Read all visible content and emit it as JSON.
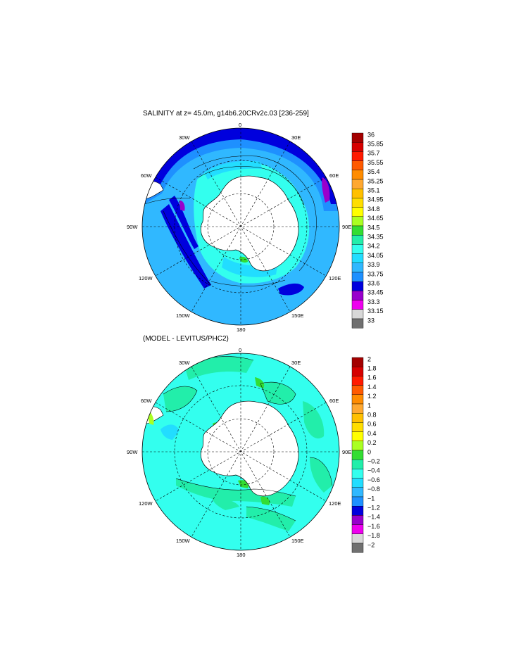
{
  "panel1": {
    "title": "SALINITY at z=  45.0m, g14b6.20CRv2c.03 [236-259]",
    "lon_labels": {
      "l0": "0",
      "l30w": "30W",
      "l30e": "30E",
      "l60w": "60W",
      "l60e": "60E",
      "l90w": "90W",
      "l90e": "90E",
      "l120w": "120W",
      "l120e": "120E",
      "l150w": "150W",
      "l150e": "150E",
      "l180": "180"
    },
    "colorbar": {
      "labels": [
        "36",
        "35.85",
        "35.7",
        "35.55",
        "35.4",
        "35.25",
        "35.1",
        "34.95",
        "34.8",
        "34.65",
        "34.5",
        "34.35",
        "34.2",
        "34.05",
        "33.9",
        "33.75",
        "33.6",
        "33.45",
        "33.3",
        "33.15",
        "33"
      ],
      "colors": [
        "#a30000",
        "#d60000",
        "#ff1a00",
        "#ff5a00",
        "#ff8c00",
        "#ffa830",
        "#ffc000",
        "#ffde00",
        "#ffff00",
        "#aaff22",
        "#33dd33",
        "#22eeaa",
        "#33ffee",
        "#22ddff",
        "#30b8ff",
        "#1e90ff",
        "#0000dd",
        "#9900cc",
        "#ee00ee",
        "#d8d8d8",
        "#707070"
      ]
    }
  },
  "panel2": {
    "title": "(MODEL - LEVITUS/PHC2)",
    "lon_labels": {
      "l0": "0",
      "l30w": "30W",
      "l30e": "30E",
      "l60w": "60W",
      "l60e": "60E",
      "l90w": "90W",
      "l90e": "90E",
      "l120w": "120W",
      "l120e": "120E",
      "l150w": "150W",
      "l150e": "150E",
      "l180": "180"
    },
    "colorbar": {
      "labels": [
        "2",
        "1.8",
        "1.6",
        "1.4",
        "1.2",
        "1",
        "0.8",
        "0.6",
        "0.4",
        "0.2",
        "0",
        "−0.2",
        "−0.4",
        "−0.6",
        "−0.8",
        "−1",
        "−1.2",
        "−1.4",
        "−1.6",
        "−1.8",
        "−2"
      ],
      "colors": [
        "#a30000",
        "#d60000",
        "#ff1a00",
        "#ff5a00",
        "#ff8c00",
        "#ffa830",
        "#ffc000",
        "#ffde00",
        "#ffff00",
        "#aaff22",
        "#33dd33",
        "#22eeaa",
        "#33ffee",
        "#22ddff",
        "#30b8ff",
        "#1e90ff",
        "#0000dd",
        "#9900cc",
        "#ee00ee",
        "#d8d8d8",
        "#707070"
      ]
    }
  }
}
